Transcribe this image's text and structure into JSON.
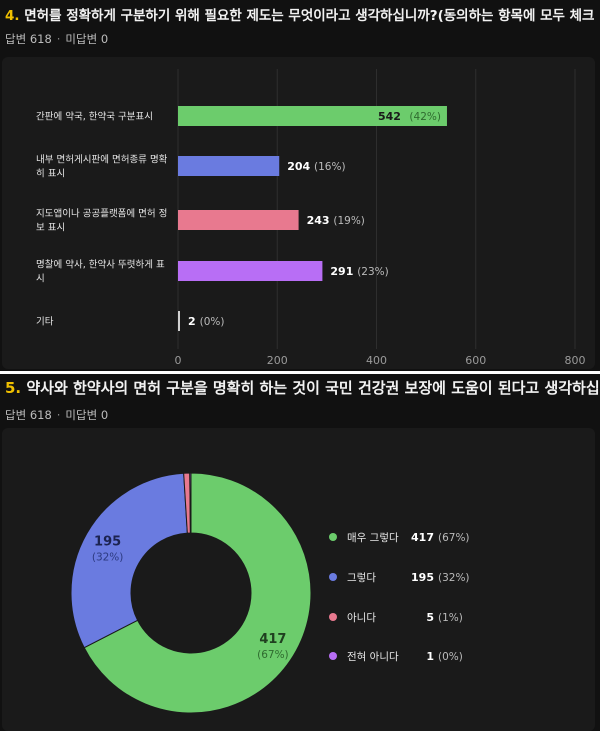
{
  "q4": {
    "number": "4.",
    "title": "면허를 정확하게 구분하기 위해 필요한 제도는 무엇이라고 생각하십니까?(동의하는 항목에 모두 체크 )",
    "answered_label": "답변 618",
    "unanswered_label": "미답변 0"
  },
  "q5": {
    "number": "5.",
    "title": "약사와 한약사의 면허 구분을 명확히 하는 것이 국민 건강권 보장에 도움이 된다고 생각하십니까?",
    "answered_label": "답변 618",
    "unanswered_label": "미답변 0"
  },
  "chart_data": [
    {
      "type": "bar",
      "orientation": "horizontal",
      "categories": [
        [
          "간판에 약국, 한약국 구분표시"
        ],
        [
          "내부 면허게시판에 면허종류 명확",
          "히 표시"
        ],
        [
          "지도앱이나 공공플랫폼에 면허 정",
          "보 표시"
        ],
        [
          "명찰에 약사, 한약사 뚜렷하게 표",
          "시"
        ],
        [
          "기타"
        ]
      ],
      "values": [
        542,
        204,
        243,
        291,
        2
      ],
      "percent_labels": [
        "(42%)",
        "(16%)",
        "(19%)",
        "(23%)",
        "(0%)"
      ],
      "colors": [
        "#6ccc6c",
        "#6a7be0",
        "#e8798f",
        "#b86ef5",
        "#d0d0d0"
      ],
      "xlim": [
        0,
        800
      ],
      "xticks": [
        0,
        200,
        400,
        600,
        800
      ],
      "grid": true
    },
    {
      "type": "pie",
      "donut": true,
      "labels": [
        "매우 그렇다",
        "그렇다",
        "아니다",
        "전혀 아니다"
      ],
      "values": [
        417,
        195,
        5,
        1
      ],
      "percent_labels": [
        "(67%)",
        "(32%)",
        "(1%)",
        "(0%)"
      ],
      "colors": [
        "#6ccc6c",
        "#6a7be0",
        "#e8798f",
        "#b86ef5"
      ],
      "legend_position": "right"
    }
  ]
}
